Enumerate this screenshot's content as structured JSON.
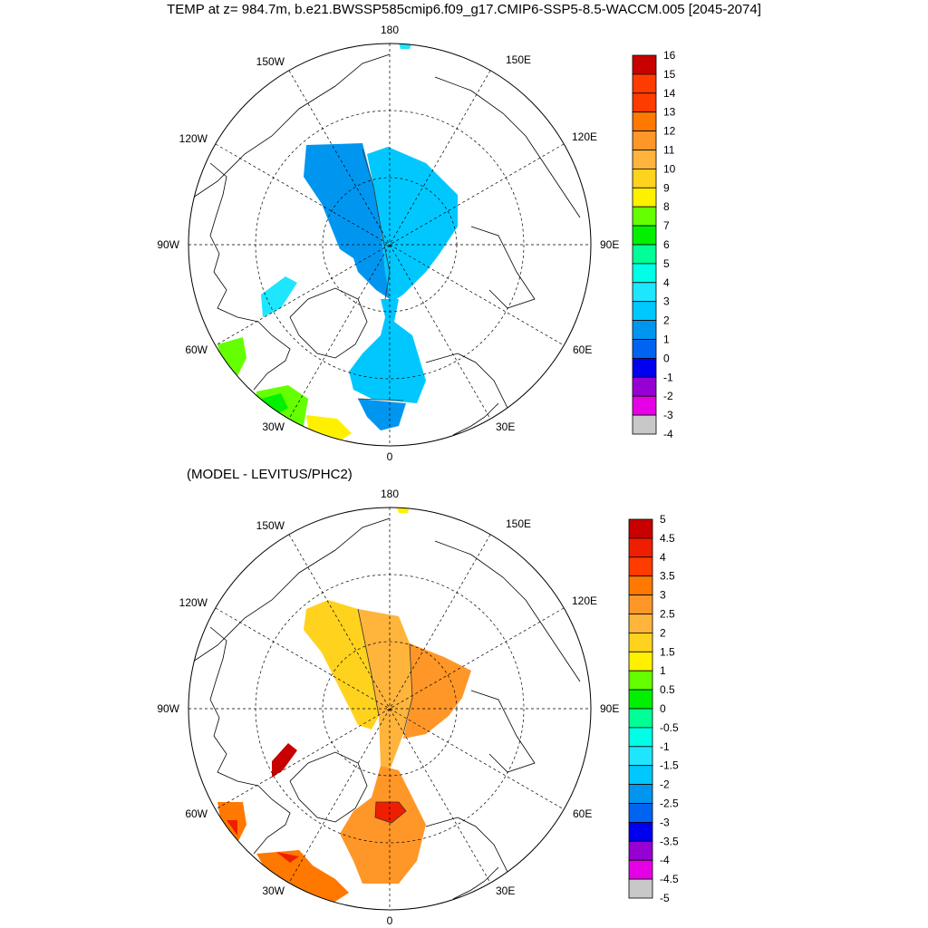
{
  "title": "TEMP at z= 984.7m, b.e21.BWSSP585cmip6.f09_g17.CMIP6-SSP5-8.5-WACCM.005 [2045-2074]",
  "subtitle": "(MODEL - LEVITUS/PHC2)",
  "longitude_labels": [
    "180",
    "150E",
    "120E",
    "90E",
    "60E",
    "30E",
    "0",
    "30W",
    "60W",
    "90W",
    "120W",
    "150W"
  ],
  "colors": {
    "top_scale": [
      "#6e6e6e",
      "#c8c8c8",
      "#e600e6",
      "#9600d2",
      "#0000f0",
      "#0064f0",
      "#0096f0",
      "#00c8ff",
      "#1ee6ff",
      "#00ffe6",
      "#00ff96",
      "#00f000",
      "#64ff00",
      "#fff000",
      "#ffd21e",
      "#ffb43c",
      "#ff9628",
      "#ff7800",
      "#ff3c00",
      "#f01e00",
      "#c80000"
    ],
    "diff_scale": [
      "#6e6e6e",
      "#c8c8c8",
      "#e600e6",
      "#9600d2",
      "#0000f0",
      "#0064f0",
      "#0096f0",
      "#00c8ff",
      "#1ee6ff",
      "#00ffe6",
      "#00ff96",
      "#00f000",
      "#64ff00",
      "#fff000",
      "#ffd21e",
      "#ffb43c",
      "#ff9628",
      "#ff7800",
      "#ff3c00",
      "#f01e00",
      "#c80000"
    ]
  },
  "top_colorbar": {
    "labels": [
      "16",
      "15",
      "14",
      "13",
      "12",
      "11",
      "10",
      "9",
      "8",
      "7",
      "6",
      "5",
      "4",
      "3",
      "2",
      "1",
      "0",
      "-1",
      "-2",
      "-3",
      "-4"
    ],
    "fill_indices": [
      20,
      18,
      18,
      17,
      16,
      15,
      14,
      13,
      12,
      11,
      10,
      9,
      8,
      7,
      6,
      5,
      4,
      3,
      2,
      1
    ]
  },
  "bottom_colorbar": {
    "labels": [
      "5",
      "4.5",
      "4",
      "3.5",
      "3",
      "2.5",
      "2",
      "1.5",
      "1",
      "0.5",
      "0",
      "-0.5",
      "-1",
      "-1.5",
      "-2",
      "-2.5",
      "-3",
      "-3.5",
      "-4",
      "-4.5",
      "-5"
    ],
    "fill_indices": [
      20,
      19,
      18,
      17,
      16,
      15,
      14,
      13,
      12,
      11,
      10,
      9,
      8,
      7,
      6,
      5,
      4,
      3,
      2,
      1
    ]
  }
}
